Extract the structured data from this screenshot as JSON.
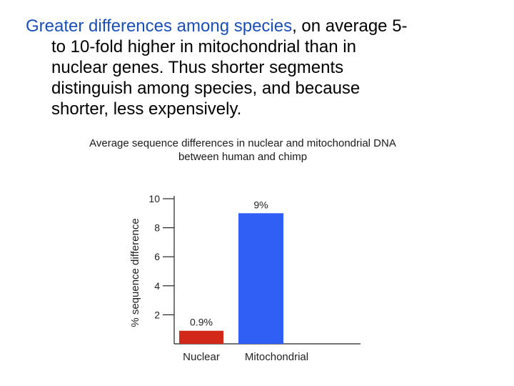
{
  "slide": {
    "line1_highlight": "Greater differences among species",
    "line1_rest": ", on average 5-",
    "line2": "to 10-fold higher in mitochondrial than in",
    "line3": "nuclear genes. Thus shorter segments",
    "line4": "distinguish among species, and because",
    "line5": "shorter, less expensively."
  },
  "colors": {
    "highlight": "#1a4fb8",
    "nuclear_bar": "#d1281a",
    "mito_bar": "#2f5ff5"
  },
  "chart_data": {
    "type": "bar",
    "title_line1": "Average sequence differences in nuclear and mitochondrial DNA",
    "title_line2": "between human and chimp",
    "xlabel": "",
    "ylabel": "% sequence difference",
    "ylim": [
      0,
      10
    ],
    "yticks": [
      2,
      4,
      6,
      8,
      10
    ],
    "categories": [
      "Nuclear",
      "Mitochondrial"
    ],
    "values": [
      0.9,
      9
    ],
    "data_labels": [
      "0.9%",
      "9%"
    ],
    "bar_colors": [
      "#d1281a",
      "#2f5ff5"
    ],
    "grid": false
  }
}
